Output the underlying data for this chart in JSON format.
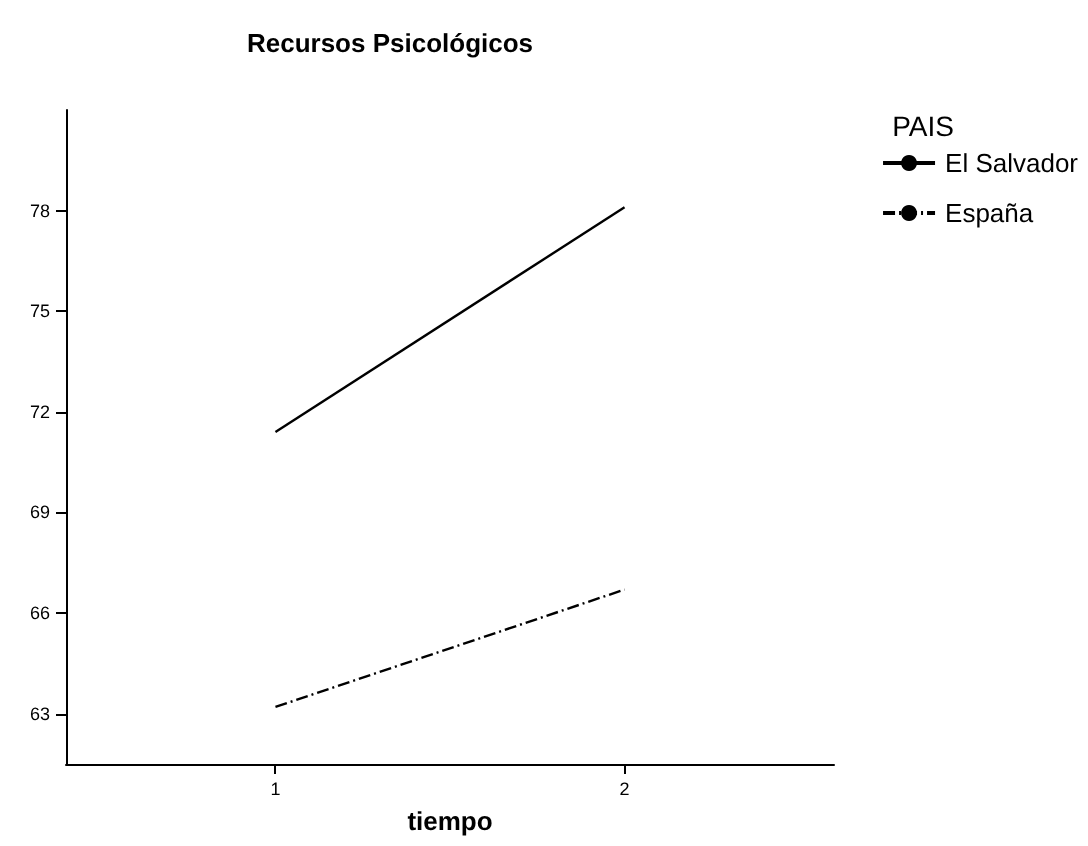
{
  "chart_data": {
    "type": "line",
    "title": "Recursos Psicológicos",
    "xlabel": "tiempo",
    "legend_title": "PAIS",
    "x": [
      1,
      2
    ],
    "series": [
      {
        "name": "El Salvador",
        "color": "#000000",
        "values": [
          71.4,
          78.1
        ],
        "line_style": "solid"
      },
      {
        "name": "España",
        "color": "#000000",
        "values": [
          63.2,
          66.7
        ],
        "line_style": "dashed"
      }
    ],
    "xlim": [
      0.4,
      2.6
    ],
    "xticks": [
      1,
      2
    ],
    "ylim": [
      61.5,
      81
    ],
    "yticks": [
      63,
      66,
      69,
      72,
      75,
      78
    ],
    "grid": false,
    "legend": "right",
    "marker": "none"
  }
}
